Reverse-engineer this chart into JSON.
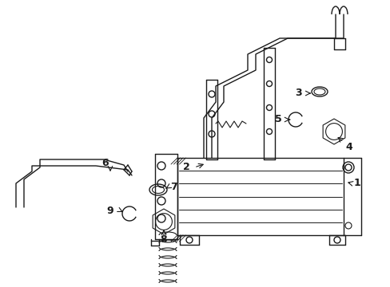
{
  "background_color": "#ffffff",
  "line_color": "#1a1a1a",
  "fig_width": 4.89,
  "fig_height": 3.6,
  "dpi": 100
}
